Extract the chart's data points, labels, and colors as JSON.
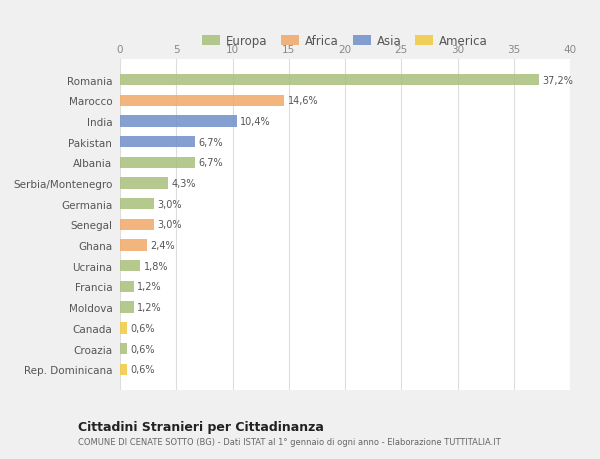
{
  "categories": [
    "Romania",
    "Marocco",
    "India",
    "Pakistan",
    "Albania",
    "Serbia/Montenegro",
    "Germania",
    "Senegal",
    "Ghana",
    "Ucraina",
    "Francia",
    "Moldova",
    "Canada",
    "Croazia",
    "Rep. Dominicana"
  ],
  "values": [
    37.2,
    14.6,
    10.4,
    6.7,
    6.7,
    4.3,
    3.0,
    3.0,
    2.4,
    1.8,
    1.2,
    1.2,
    0.6,
    0.6,
    0.6
  ],
  "labels": [
    "37,2%",
    "14,6%",
    "10,4%",
    "6,7%",
    "6,7%",
    "4,3%",
    "3,0%",
    "3,0%",
    "2,4%",
    "1,8%",
    "1,2%",
    "1,2%",
    "0,6%",
    "0,6%",
    "0,6%"
  ],
  "colors": [
    "#a8c07a",
    "#f0a868",
    "#7090c8",
    "#7090c8",
    "#a8c07a",
    "#a8c07a",
    "#a8c07a",
    "#f0a868",
    "#f0a868",
    "#a8c07a",
    "#a8c07a",
    "#a8c07a",
    "#f0c840",
    "#a8c07a",
    "#f0c840"
  ],
  "legend_labels": [
    "Europa",
    "Africa",
    "Asia",
    "America"
  ],
  "legend_colors": [
    "#a8c07a",
    "#f0a868",
    "#7090c8",
    "#f0c840"
  ],
  "xlim": [
    0,
    40
  ],
  "xticks": [
    0,
    5,
    10,
    15,
    20,
    25,
    30,
    35,
    40
  ],
  "title": "Cittadini Stranieri per Cittadinanza",
  "subtitle": "COMUNE DI CENATE SOTTO (BG) - Dati ISTAT al 1° gennaio di ogni anno - Elaborazione TUTTITALIA.IT",
  "fig_bg_color": "#f0f0f0",
  "plot_bg_color": "#ffffff",
  "bar_height": 0.55,
  "bar_alpha": 0.85
}
